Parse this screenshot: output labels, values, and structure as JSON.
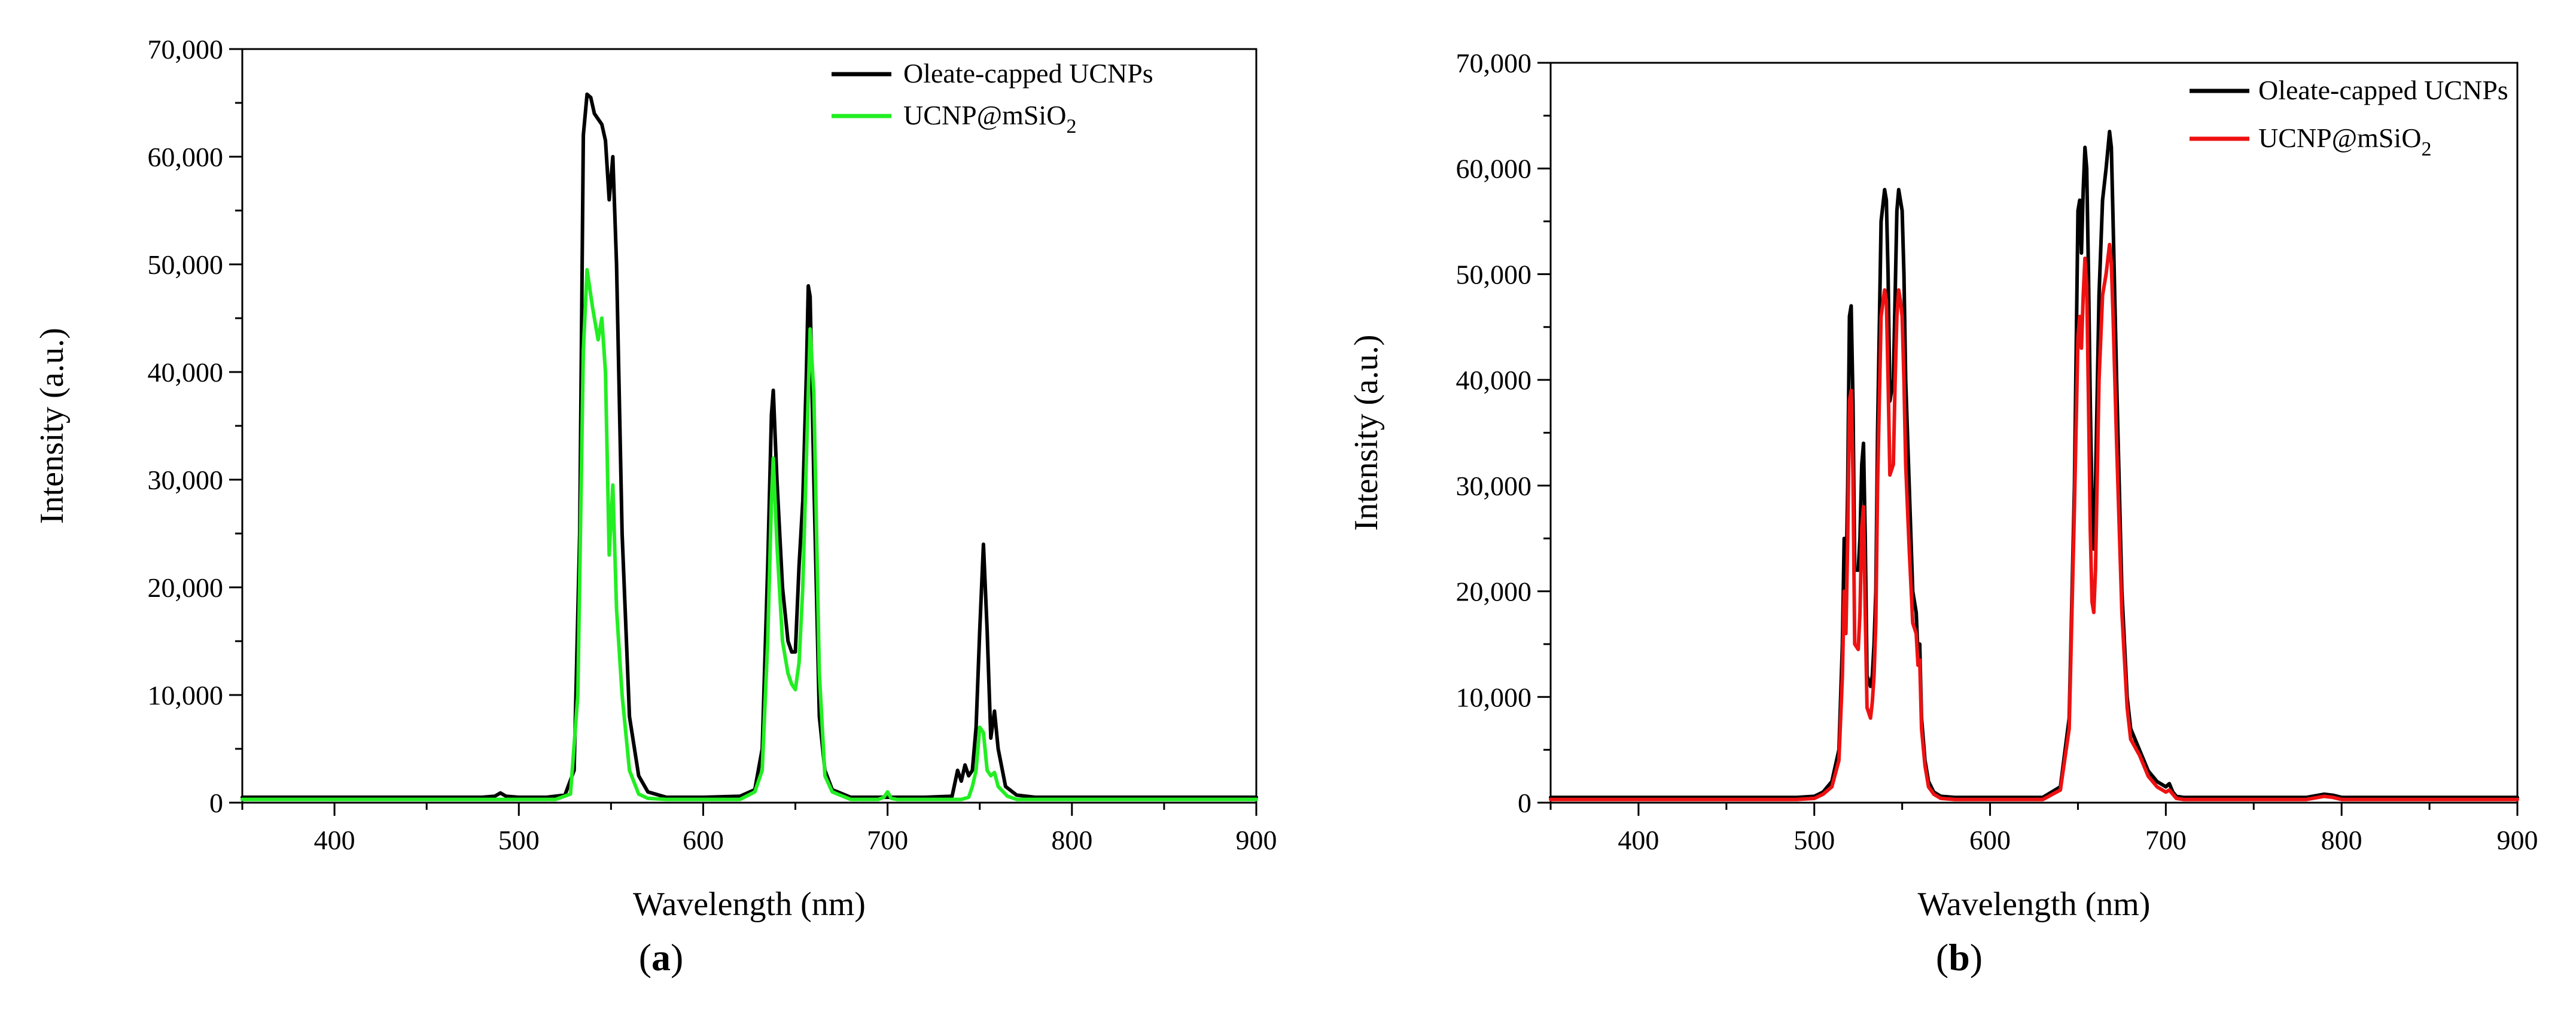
{
  "chart_data": [
    {
      "type": "line",
      "panel_label_parts": [
        "(",
        "a",
        ")"
      ],
      "xlabel": "Wavelength (nm)",
      "ylabel": "Intensity (a.u.)",
      "xlim": [
        350,
        900
      ],
      "ylim": [
        0,
        70000
      ],
      "xticks": [
        400,
        500,
        600,
        700,
        800,
        900
      ],
      "xtick_labels": [
        "400",
        "500",
        "600",
        "700",
        "800",
        "900"
      ],
      "yticks": [
        0,
        10000,
        20000,
        30000,
        40000,
        50000,
        60000,
        70000
      ],
      "ytick_labels": [
        "0",
        "10,000",
        "20,000",
        "30,000",
        "40,000",
        "50,000",
        "60,000",
        "70,000"
      ],
      "grid": false,
      "legend_position": "top-right",
      "series": [
        {
          "name": "Oleate-capped UCNPs",
          "name_parts": [
            "Oleate-capped UCNPs",
            "",
            ""
          ],
          "color": "#000000",
          "x": [
            350,
            480,
            487,
            490,
            493,
            500,
            515,
            525,
            530,
            533,
            535,
            537,
            539,
            541,
            543,
            545,
            547,
            549,
            551,
            553,
            556,
            560,
            565,
            570,
            580,
            600,
            620,
            628,
            632,
            635,
            637,
            638,
            640,
            643,
            646,
            648,
            650,
            652,
            654,
            656,
            657,
            658,
            660,
            663,
            666,
            670,
            680,
            700,
            720,
            735,
            738,
            740,
            742,
            744,
            746,
            748,
            750,
            752,
            754,
            756,
            758,
            760,
            764,
            770,
            780,
            800,
            900
          ],
          "values": [
            500,
            500,
            600,
            900,
            600,
            500,
            500,
            700,
            3000,
            25000,
            62000,
            65800,
            65500,
            64000,
            63500,
            63000,
            61500,
            56000,
            60000,
            50000,
            25000,
            8000,
            2500,
            1000,
            500,
            500,
            600,
            1200,
            5000,
            22000,
            36000,
            38300,
            30000,
            20000,
            15000,
            14000,
            14000,
            22000,
            28000,
            40000,
            48000,
            47000,
            30000,
            8000,
            3000,
            1200,
            500,
            500,
            500,
            600,
            3000,
            2000,
            3500,
            2500,
            3000,
            7000,
            16000,
            24000,
            16000,
            6000,
            8500,
            5000,
            1500,
            700,
            500,
            500,
            500
          ]
        },
        {
          "name": "UCNP@mSiO2",
          "name_parts": [
            "UCNP@mSiO",
            "2",
            ""
          ],
          "color": "#22ee22",
          "x": [
            350,
            480,
            500,
            520,
            528,
            532,
            535,
            537,
            540,
            543,
            545,
            547,
            549,
            551,
            553,
            556,
            560,
            565,
            570,
            580,
            600,
            620,
            628,
            632,
            635,
            637,
            638,
            640,
            643,
            646,
            648,
            650,
            652,
            654,
            656,
            658,
            660,
            663,
            666,
            670,
            680,
            695,
            698,
            700,
            702,
            705,
            720,
            740,
            744,
            746,
            748,
            750,
            752,
            754,
            756,
            758,
            760,
            765,
            770,
            780,
            800,
            900
          ],
          "values": [
            300,
            300,
            300,
            300,
            800,
            10000,
            42000,
            49500,
            46000,
            43000,
            45000,
            40000,
            23000,
            29500,
            18000,
            10000,
            3000,
            800,
            400,
            300,
            300,
            300,
            1000,
            3000,
            15000,
            28000,
            32000,
            24000,
            15000,
            12000,
            11000,
            10500,
            13000,
            20000,
            32000,
            44000,
            38000,
            12000,
            2500,
            1000,
            300,
            300,
            500,
            1000,
            400,
            300,
            300,
            300,
            500,
            1500,
            3000,
            7000,
            6500,
            3000,
            2500,
            2800,
            1500,
            600,
            300,
            300,
            300,
            300
          ]
        }
      ]
    },
    {
      "type": "line",
      "panel_label_parts": [
        "(",
        "b",
        ")"
      ],
      "xlabel": "Wavelength (nm)",
      "ylabel": "Intensity (a.u.)",
      "xlim": [
        350,
        900
      ],
      "ylim": [
        0,
        70000
      ],
      "xticks": [
        400,
        500,
        600,
        700,
        800,
        900
      ],
      "xtick_labels": [
        "400",
        "500",
        "600",
        "700",
        "800",
        "900"
      ],
      "yticks": [
        0,
        10000,
        20000,
        30000,
        40000,
        50000,
        60000,
        70000
      ],
      "ytick_labels": [
        "0",
        "10,000",
        "20,000",
        "30,000",
        "40,000",
        "50,000",
        "60,000",
        "70,000"
      ],
      "grid": false,
      "legend_position": "top-right",
      "series": [
        {
          "name": "Oleate-capped UCNPs",
          "name_parts": [
            "Oleate-capped UCNPs",
            "",
            ""
          ],
          "color": "#000000",
          "x": [
            350,
            490,
            500,
            505,
            510,
            514,
            516,
            517,
            518,
            519,
            520,
            521,
            522,
            523,
            525,
            526,
            527,
            528,
            529,
            530,
            532,
            533,
            534,
            535,
            536,
            538,
            540,
            541,
            542,
            543,
            545,
            546,
            547,
            548,
            549,
            550,
            551,
            552,
            554,
            556,
            558,
            559,
            560,
            561,
            563,
            565,
            568,
            572,
            580,
            600,
            630,
            640,
            645,
            648,
            650,
            651,
            652,
            653,
            654,
            655,
            656,
            657,
            658,
            659,
            660,
            662,
            664,
            666,
            668,
            669,
            670,
            672,
            675,
            678,
            680,
            685,
            690,
            695,
            700,
            702,
            704,
            706,
            710,
            720,
            780,
            790,
            795,
            800,
            900
          ],
          "values": [
            500,
            500,
            600,
            1000,
            2000,
            5000,
            15000,
            25000,
            20000,
            30000,
            46000,
            47000,
            38000,
            22000,
            22000,
            25000,
            32000,
            34000,
            25000,
            12000,
            11000,
            12000,
            15000,
            20000,
            35000,
            55000,
            58000,
            57000,
            50000,
            38000,
            40000,
            48000,
            56000,
            58000,
            57000,
            56000,
            50000,
            40000,
            30000,
            20000,
            18000,
            14000,
            15000,
            8000,
            4000,
            2000,
            1000,
            600,
            500,
            500,
            500,
            1500,
            8000,
            30000,
            56000,
            57000,
            52000,
            58000,
            62000,
            60000,
            50000,
            38000,
            28000,
            24000,
            30000,
            48000,
            57000,
            60000,
            63500,
            62000,
            55000,
            40000,
            20000,
            10000,
            7000,
            5000,
            3000,
            2000,
            1500,
            1800,
            1000,
            600,
            500,
            500,
            500,
            800,
            700,
            500,
            500
          ]
        },
        {
          "name": "UCNP@mSiO2",
          "name_parts": [
            "UCNP@mSiO",
            "2",
            ""
          ],
          "color": "#ee1111",
          "x": [
            350,
            490,
            500,
            505,
            510,
            514,
            516,
            517,
            518,
            519,
            520,
            521,
            522,
            523,
            525,
            526,
            527,
            528,
            529,
            530,
            532,
            533,
            534,
            535,
            536,
            538,
            540,
            541,
            542,
            543,
            545,
            546,
            547,
            548,
            549,
            550,
            551,
            552,
            554,
            556,
            558,
            559,
            560,
            561,
            563,
            565,
            568,
            572,
            580,
            600,
            630,
            640,
            645,
            648,
            650,
            651,
            652,
            653,
            654,
            655,
            656,
            657,
            658,
            659,
            660,
            662,
            664,
            666,
            668,
            669,
            670,
            672,
            675,
            678,
            680,
            685,
            690,
            695,
            700,
            702,
            704,
            706,
            710,
            720,
            780,
            790,
            795,
            800,
            900
          ],
          "values": [
            300,
            300,
            400,
            800,
            1500,
            4000,
            12000,
            20000,
            16000,
            25000,
            38000,
            39000,
            31000,
            15000,
            14500,
            18000,
            26000,
            28000,
            18000,
            9000,
            8000,
            9500,
            12000,
            17000,
            30000,
            46000,
            48500,
            47500,
            40000,
            31000,
            32000,
            40000,
            46000,
            48500,
            47500,
            46000,
            40000,
            32000,
            24000,
            17000,
            16000,
            13000,
            13500,
            7000,
            3500,
            1500,
            800,
            400,
            300,
            300,
            300,
            1200,
            7000,
            28000,
            44000,
            46000,
            43000,
            48000,
            51500,
            49000,
            38000,
            26000,
            19000,
            18000,
            22000,
            40000,
            48000,
            50000,
            52800,
            51000,
            46000,
            34000,
            18000,
            9000,
            6000,
            4500,
            2500,
            1500,
            1000,
            1200,
            800,
            400,
            300,
            300,
            300,
            600,
            500,
            300,
            300
          ]
        }
      ]
    }
  ]
}
